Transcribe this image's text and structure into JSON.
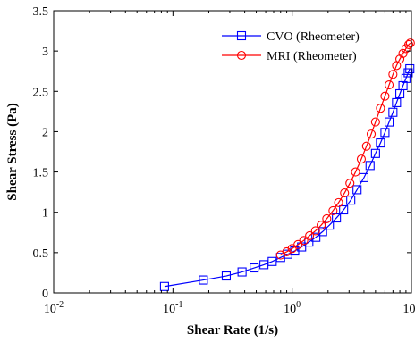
{
  "chart_data": {
    "type": "scatter",
    "xlabel": "Shear Rate (1/s)",
    "ylabel": "Shear Stress (Pa)",
    "xscale": "log",
    "xlim": [
      0.01,
      10
    ],
    "ylim": [
      0,
      3.5
    ],
    "x_ticks": [
      {
        "value": 0.01,
        "base": "10",
        "exp": "-2"
      },
      {
        "value": 0.1,
        "base": "10",
        "exp": "-1"
      },
      {
        "value": 1,
        "base": "10",
        "exp": "0"
      },
      {
        "value": 10,
        "base": "10",
        "exp": "1"
      }
    ],
    "y_ticks": [
      "0",
      "0.5",
      "1",
      "1.5",
      "2",
      "2.5",
      "3",
      "3.5"
    ],
    "y_tick_values": [
      0,
      0.5,
      1,
      1.5,
      2,
      2.5,
      3,
      3.5
    ],
    "grid": false,
    "legend_position": "top-right",
    "series": [
      {
        "name": "CVO (Rheometer)",
        "color": "#0000ff",
        "marker": "square",
        "x": [
          0.085,
          0.18,
          0.28,
          0.38,
          0.48,
          0.58,
          0.68,
          0.8,
          0.92,
          1.05,
          1.2,
          1.38,
          1.58,
          1.8,
          2.05,
          2.35,
          2.7,
          3.1,
          3.5,
          4.0,
          4.5,
          5.0,
          5.5,
          6.0,
          6.5,
          7.0,
          7.5,
          8.0,
          8.5,
          9.0,
          9.4,
          9.7
        ],
        "y": [
          0.08,
          0.16,
          0.21,
          0.26,
          0.31,
          0.35,
          0.39,
          0.44,
          0.48,
          0.52,
          0.57,
          0.63,
          0.69,
          0.76,
          0.84,
          0.93,
          1.03,
          1.15,
          1.28,
          1.43,
          1.58,
          1.73,
          1.86,
          1.99,
          2.12,
          2.24,
          2.36,
          2.47,
          2.57,
          2.66,
          2.73,
          2.78
        ]
      },
      {
        "name": "MRI  (Rheometer)",
        "color": "#ff0000",
        "marker": "circle",
        "x": [
          0.8,
          0.9,
          1.0,
          1.12,
          1.25,
          1.4,
          1.57,
          1.75,
          1.95,
          2.2,
          2.45,
          2.75,
          3.05,
          3.4,
          3.8,
          4.2,
          4.6,
          5.0,
          5.5,
          6.0,
          6.5,
          7.0,
          7.5,
          8.0,
          8.5,
          9.0,
          9.5,
          9.8
        ],
        "y": [
          0.47,
          0.51,
          0.55,
          0.6,
          0.65,
          0.71,
          0.77,
          0.84,
          0.92,
          1.02,
          1.12,
          1.24,
          1.36,
          1.5,
          1.66,
          1.82,
          1.97,
          2.12,
          2.29,
          2.44,
          2.58,
          2.71,
          2.82,
          2.9,
          2.97,
          3.03,
          3.08,
          3.1
        ]
      }
    ]
  }
}
